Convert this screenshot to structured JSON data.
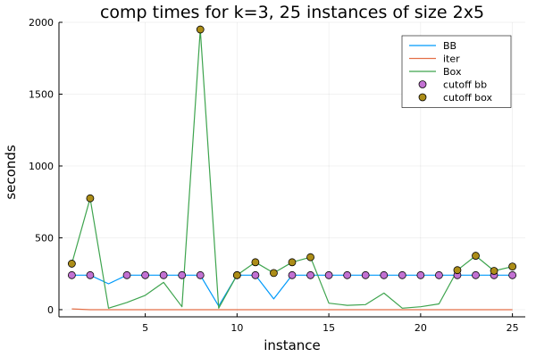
{
  "chart_data": {
    "type": "line",
    "title": "comp times for k=3, 25 instances of size 2x5",
    "xlabel": "instance",
    "ylabel": "seconds",
    "xlim": [
      0.3,
      25.7
    ],
    "ylim": [
      -50,
      2000
    ],
    "xticks": [
      5,
      10,
      15,
      20,
      25
    ],
    "yticks": [
      0,
      500,
      1000,
      1500,
      2000
    ],
    "grid": true,
    "legend_position": "top-right",
    "x": [
      1,
      2,
      3,
      4,
      5,
      6,
      7,
      8,
      9,
      10,
      11,
      12,
      13,
      14,
      15,
      16,
      17,
      18,
      19,
      20,
      21,
      22,
      23,
      24,
      25
    ],
    "series": [
      {
        "name": "BB",
        "kind": "line",
        "color": "#009AFA",
        "values": [
          240,
          240,
          180,
          240,
          240,
          240,
          240,
          240,
          25,
          240,
          240,
          75,
          240,
          240,
          240,
          240,
          240,
          240,
          240,
          240,
          240,
          240,
          240,
          240,
          240
        ]
      },
      {
        "name": "iter",
        "kind": "line",
        "color": "#E36F47",
        "values": [
          5,
          0,
          0,
          0,
          0,
          0,
          0,
          0,
          0,
          0,
          0,
          0,
          0,
          0,
          0,
          0,
          0,
          0,
          0,
          0,
          0,
          0,
          0,
          0,
          0
        ]
      },
      {
        "name": "Box",
        "kind": "line",
        "color": "#3EA44E",
        "values": [
          320,
          775,
          10,
          50,
          100,
          190,
          20,
          1950,
          10,
          240,
          330,
          255,
          330,
          365,
          45,
          30,
          35,
          115,
          10,
          20,
          40,
          275,
          375,
          270,
          300
        ]
      },
      {
        "name": "cutoff bb",
        "kind": "scatter",
        "color": "#C271D2",
        "x": [
          1,
          2,
          4,
          5,
          6,
          7,
          8,
          10,
          11,
          13,
          14,
          15,
          16,
          17,
          18,
          19,
          20,
          21,
          22,
          23,
          24,
          25
        ],
        "values": [
          240,
          240,
          240,
          240,
          240,
          240,
          240,
          240,
          240,
          240,
          240,
          240,
          240,
          240,
          240,
          240,
          240,
          240,
          240,
          240,
          240,
          240
        ]
      },
      {
        "name": "cutoff box",
        "kind": "scatter",
        "color": "#AC8D18",
        "x": [
          1,
          2,
          8,
          10,
          11,
          12,
          13,
          14,
          22,
          23,
          24,
          25
        ],
        "values": [
          320,
          775,
          1950,
          240,
          330,
          255,
          330,
          365,
          275,
          375,
          270,
          300
        ]
      }
    ]
  }
}
